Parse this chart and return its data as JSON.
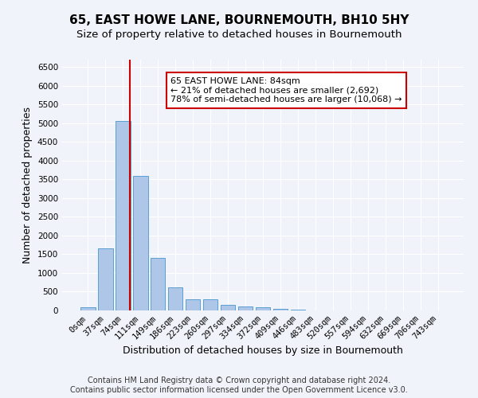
{
  "title": "65, EAST HOWE LANE, BOURNEMOUTH, BH10 5HY",
  "subtitle": "Size of property relative to detached houses in Bournemouth",
  "xlabel": "Distribution of detached houses by size in Bournemouth",
  "ylabel": "Number of detached properties",
  "footer_line1": "Contains HM Land Registry data © Crown copyright and database right 2024.",
  "footer_line2": "Contains public sector information licensed under the Open Government Licence v3.0.",
  "bar_labels": [
    "0sqm",
    "37sqm",
    "74sqm",
    "111sqm",
    "149sqm",
    "186sqm",
    "223sqm",
    "260sqm",
    "297sqm",
    "334sqm",
    "372sqm",
    "409sqm",
    "446sqm",
    "483sqm",
    "520sqm",
    "557sqm",
    "594sqm",
    "632sqm",
    "669sqm",
    "706sqm",
    "743sqm"
  ],
  "bar_values": [
    80,
    1650,
    5070,
    3600,
    1400,
    610,
    300,
    290,
    150,
    110,
    80,
    50,
    30,
    0,
    0,
    0,
    0,
    0,
    0,
    0,
    0
  ],
  "bar_color": "#aec6e8",
  "bar_edge_color": "#5a9fd4",
  "property_line_bin": 2,
  "property_line_color": "#cc0000",
  "annotation_text": "65 EAST HOWE LANE: 84sqm\n← 21% of detached houses are smaller (2,692)\n78% of semi-detached houses are larger (10,068) →",
  "annotation_box_color": "#ffffff",
  "annotation_box_edge_color": "#cc0000",
  "ylim": [
    0,
    6700
  ],
  "yticks": [
    0,
    500,
    1000,
    1500,
    2000,
    2500,
    3000,
    3500,
    4000,
    4500,
    5000,
    5500,
    6000,
    6500
  ],
  "background_color": "#f0f4fa",
  "grid_color": "#ffffff",
  "title_fontsize": 11,
  "subtitle_fontsize": 9.5,
  "axis_label_fontsize": 9,
  "tick_fontsize": 7.5,
  "annotation_fontsize": 8,
  "footer_fontsize": 7
}
